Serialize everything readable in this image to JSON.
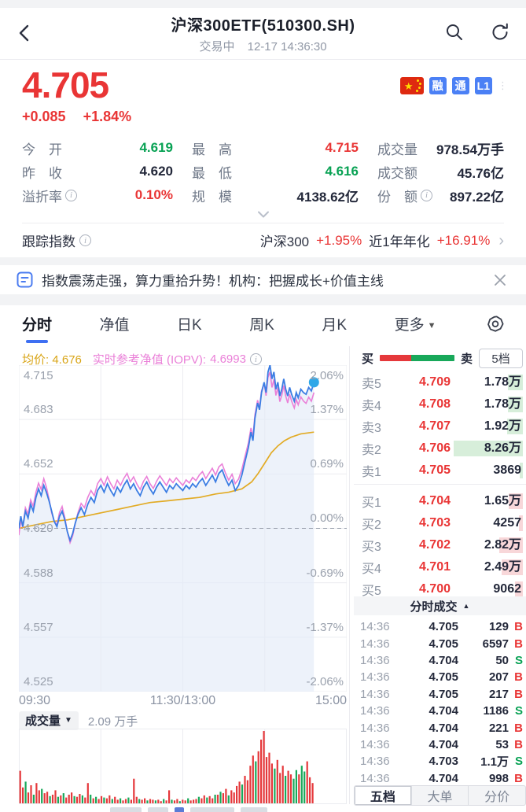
{
  "colors": {
    "up": "#e93535",
    "down": "#08a254",
    "dark": "#23283a",
    "accent": "#3e6ff2",
    "price_line": "#3b7de3",
    "iopv_line": "#ea80d8",
    "avg_line": "#e2ab25",
    "dot": "#2ea7e8",
    "vol_up": "#e5383b",
    "vol_down": "#18a85a"
  },
  "header": {
    "title": "沪深300ETF(510300.SH)",
    "status": "交易中",
    "datetime": "12-17 14:36:30"
  },
  "quote": {
    "last": "4.705",
    "change": "+0.085",
    "change_pct": "+1.84%",
    "badges": [
      {
        "type": "flag",
        "label": "cn-flag"
      },
      {
        "type": "text",
        "label": "融"
      },
      {
        "type": "text",
        "label": "通"
      },
      {
        "type": "text",
        "label": "L1"
      }
    ],
    "stats": [
      [
        {
          "label": "今　开",
          "value": "4.619",
          "color": "down"
        },
        {
          "label": "最　高",
          "value": "4.715",
          "color": "up"
        },
        {
          "label": "成交量",
          "value": "978.54万手",
          "color": "dark"
        }
      ],
      [
        {
          "label": "昨　收",
          "value": "4.620",
          "color": "dark"
        },
        {
          "label": "最　低",
          "value": "4.616",
          "color": "down"
        },
        {
          "label": "成交额",
          "value": "45.76亿",
          "color": "dark"
        }
      ],
      [
        {
          "label": "溢折率",
          "info": true,
          "value": "0.10%",
          "color": "up"
        },
        {
          "label": "规　模",
          "value": "4138.62亿",
          "color": "dark"
        },
        {
          "label": "份　额",
          "info": true,
          "value": "897.22亿",
          "color": "dark"
        }
      ]
    ]
  },
  "tracking": {
    "label": "跟踪指数",
    "index_name": "沪深300",
    "index_chg": "+1.95%",
    "annual_label": "近1年年化",
    "annual_val": "+16.91%"
  },
  "news": {
    "text": "指数震荡走强，算力重拾升势！机构：把握成长+价值主线"
  },
  "tabs": {
    "items": [
      {
        "label": "分时",
        "active": true
      },
      {
        "label": "净值"
      },
      {
        "label": "日K"
      },
      {
        "label": "周K"
      },
      {
        "label": "月K"
      },
      {
        "label": "更多",
        "caret": true
      }
    ]
  },
  "chart": {
    "legend": {
      "avg_label": "均价:",
      "avg_value": "4.676",
      "iopv_label": "实时参考净值 (IOPV):",
      "iopv_value": "4.6993"
    },
    "y_left": [
      "4.715",
      "4.683",
      "4.652",
      "4.620",
      "4.588",
      "4.557",
      "4.525"
    ],
    "y_right": [
      "2.06%",
      "1.37%",
      "0.69%",
      "0.00%",
      "-0.69%",
      "-1.37%",
      "-2.06%"
    ],
    "x_labels": [
      "09:30",
      "11:30/13:00",
      "15:00"
    ],
    "volume_label": "成交量",
    "volume_value": "2.09 万手"
  },
  "orderbook": {
    "buy_label": "买",
    "sell_label": "卖",
    "depth_button": "5档",
    "ratio_red": 0.42,
    "asks": [
      {
        "label": "卖5",
        "price": "4.709",
        "qty": "1.78万",
        "q": 17800
      },
      {
        "label": "卖4",
        "price": "4.708",
        "qty": "1.78万",
        "q": 17800
      },
      {
        "label": "卖3",
        "price": "4.707",
        "qty": "1.92万",
        "q": 19200
      },
      {
        "label": "卖2",
        "price": "4.706",
        "qty": "8.26万",
        "q": 82600
      },
      {
        "label": "卖1",
        "price": "4.705",
        "qty": "3869",
        "q": 3869
      }
    ],
    "bids": [
      {
        "label": "买1",
        "price": "4.704",
        "qty": "1.65万",
        "q": 16500
      },
      {
        "label": "买2",
        "price": "4.703",
        "qty": "4257",
        "q": 4257
      },
      {
        "label": "买3",
        "price": "4.702",
        "qty": "2.82万",
        "q": 28200
      },
      {
        "label": "买4",
        "price": "4.701",
        "qty": "2.49万",
        "q": 24900
      },
      {
        "label": "买5",
        "price": "4.700",
        "qty": "9062",
        "q": 9062
      }
    ]
  },
  "trades": {
    "header": "分时成交",
    "rows": [
      {
        "time": "14:36",
        "price": "4.705",
        "qty": "129",
        "side": "B"
      },
      {
        "time": "14:36",
        "price": "4.705",
        "qty": "6597",
        "side": "B"
      },
      {
        "time": "14:36",
        "price": "4.704",
        "qty": "50",
        "side": "S"
      },
      {
        "time": "14:36",
        "price": "4.705",
        "qty": "207",
        "side": "B"
      },
      {
        "time": "14:36",
        "price": "4.705",
        "qty": "217",
        "side": "B"
      },
      {
        "time": "14:36",
        "price": "4.704",
        "qty": "1186",
        "side": "S"
      },
      {
        "time": "14:36",
        "price": "4.704",
        "qty": "221",
        "side": "B"
      },
      {
        "time": "14:36",
        "price": "4.704",
        "qty": "53",
        "side": "B"
      },
      {
        "time": "14:36",
        "price": "4.703",
        "qty": "1.1万",
        "side": "S"
      },
      {
        "time": "14:36",
        "price": "4.704",
        "qty": "998",
        "side": "B"
      }
    ]
  },
  "bottom_tabs": [
    {
      "label": "五档",
      "active": true
    },
    {
      "label": "大单"
    },
    {
      "label": "分价"
    }
  ],
  "chart_data": {
    "type": "line",
    "title": "沪深300ETF intraday",
    "x_range": [
      "09:30",
      "15:00"
    ],
    "now_fraction": 0.9,
    "y_axis": {
      "base": 4.62,
      "min": 4.525,
      "max": 4.715,
      "pct_min": -2.06,
      "pct_max": 2.06
    },
    "series_names": [
      "price",
      "iopv",
      "avg_price"
    ],
    "price": [
      0,
      4.62,
      0.006,
      4.627,
      0.012,
      4.621,
      0.02,
      4.63,
      0.028,
      4.626,
      0.036,
      4.634,
      0.044,
      4.63,
      0.052,
      4.638,
      0.06,
      4.643,
      0.068,
      4.639,
      0.076,
      4.645,
      0.084,
      4.641,
      0.092,
      4.636,
      0.1,
      4.63,
      0.108,
      4.624,
      0.116,
      4.621,
      0.124,
      4.627,
      0.132,
      4.63,
      0.14,
      4.625,
      0.148,
      4.618,
      0.156,
      4.613,
      0.164,
      4.617,
      0.172,
      4.623,
      0.18,
      4.628,
      0.19,
      4.632,
      0.2,
      4.628,
      0.21,
      4.634,
      0.22,
      4.638,
      0.23,
      4.635,
      0.24,
      4.642,
      0.25,
      4.645,
      0.26,
      4.641,
      0.27,
      4.646,
      0.28,
      4.642,
      0.29,
      4.639,
      0.3,
      4.644,
      0.31,
      4.641,
      0.32,
      4.645,
      0.33,
      4.648,
      0.34,
      4.643,
      0.35,
      4.646,
      0.36,
      4.642,
      0.37,
      4.639,
      0.38,
      4.644,
      0.39,
      4.647,
      0.4,
      4.643,
      0.41,
      4.64,
      0.42,
      4.644,
      0.43,
      4.647,
      0.44,
      4.644,
      0.45,
      4.641,
      0.46,
      4.645,
      0.47,
      4.643,
      0.48,
      4.646,
      0.49,
      4.644,
      0.5,
      4.642,
      0.51,
      4.645,
      0.52,
      4.643,
      0.53,
      4.646,
      0.54,
      4.644,
      0.55,
      4.647,
      0.56,
      4.649,
      0.57,
      4.645,
      0.58,
      4.648,
      0.59,
      4.651,
      0.6,
      4.647,
      0.61,
      4.652,
      0.62,
      4.654,
      0.63,
      4.649,
      0.64,
      4.645,
      0.65,
      4.648,
      0.66,
      4.642,
      0.67,
      4.645,
      0.68,
      4.651,
      0.69,
      4.659,
      0.7,
      4.667,
      0.708,
      4.676,
      0.714,
      4.671,
      0.72,
      4.684,
      0.728,
      4.693,
      0.734,
      4.689,
      0.74,
      4.699,
      0.748,
      4.705,
      0.754,
      4.699,
      0.76,
      4.711,
      0.766,
      4.715,
      0.772,
      4.707,
      0.778,
      4.711,
      0.784,
      4.701,
      0.79,
      4.705,
      0.796,
      4.697,
      0.802,
      4.701,
      0.808,
      4.707,
      0.814,
      4.701,
      0.82,
      4.697,
      0.826,
      4.702,
      0.832,
      4.698,
      0.84,
      4.694,
      0.846,
      4.699,
      0.852,
      4.696,
      0.86,
      4.701,
      0.868,
      4.699,
      0.876,
      4.698,
      0.884,
      4.702,
      0.892,
      4.7,
      0.9,
      4.705
    ],
    "iopv_delta": [
      0,
      -0.004,
      0.02,
      0.002,
      0.05,
      0.003,
      0.08,
      0.004,
      0.1,
      -0.001,
      0.13,
      0.003,
      0.16,
      -0.002,
      0.2,
      0.004,
      0.25,
      0.004,
      0.3,
      0.004,
      0.35,
      0.004,
      0.4,
      0.003,
      0.45,
      0.004,
      0.5,
      0.003,
      0.55,
      0.004,
      0.6,
      0.004,
      0.64,
      0.003,
      0.66,
      0.004,
      0.69,
      0.003,
      0.72,
      0.002,
      0.74,
      0.001,
      0.76,
      -0.003,
      0.772,
      -0.005,
      0.79,
      -0.003,
      0.81,
      -0.004,
      0.83,
      -0.004,
      0.85,
      -0.004,
      0.87,
      -0.005,
      0.89,
      -0.006,
      0.9,
      -0.006
    ],
    "avg": [
      0,
      4.62,
      0.05,
      4.622,
      0.1,
      4.624,
      0.15,
      4.625,
      0.2,
      4.627,
      0.25,
      4.629,
      0.3,
      4.631,
      0.35,
      4.633,
      0.4,
      4.635,
      0.45,
      4.636,
      0.5,
      4.637,
      0.55,
      4.638,
      0.6,
      4.64,
      0.64,
      4.641,
      0.68,
      4.643,
      0.71,
      4.647,
      0.73,
      4.652,
      0.75,
      4.658,
      0.77,
      4.664,
      0.79,
      4.668,
      0.81,
      4.671,
      0.83,
      4.673,
      0.86,
      4.675,
      0.9,
      4.676
    ],
    "volume_bars": [
      "45r",
      "22r",
      "30g",
      "15r",
      "25r",
      "12g",
      "28r",
      "18r",
      "20g",
      "14r",
      "16r",
      "10g",
      "12r",
      "18r",
      "9g",
      "11r",
      "14g",
      "8r",
      "12r",
      "15r",
      "10g",
      "9r",
      "13r",
      "11g",
      "8r",
      "28r",
      "12g",
      "7r",
      "9g",
      "6r",
      "10r",
      "8g",
      "7r",
      "11r",
      "6g",
      "9r",
      "5r",
      "7g",
      "4r",
      "6r",
      "8g",
      "5r",
      "34r",
      "9r",
      "6g",
      "5r",
      "7r",
      "4g",
      "6r",
      "5r",
      "4g",
      "5r",
      "3r",
      "6g",
      "4r",
      "18r",
      "5g",
      "4r",
      "6r",
      "3g",
      "5r",
      "4r",
      "7g",
      "4r",
      "5r",
      "6r",
      "9g",
      "7r",
      "11r",
      "8g",
      "10r",
      "7r",
      "12g",
      "12r",
      "16g",
      "14r",
      "20r",
      "11g",
      "18r",
      "15r",
      "24r",
      "30r",
      "26g",
      "38r",
      "32r",
      "52r",
      "66r",
      "58g",
      "72r",
      "88r",
      "100r",
      "64r",
      "70r",
      "55r",
      "48g",
      "60r",
      "42r",
      "52r",
      "38g",
      "45r",
      "40r",
      "34g",
      "46g",
      "40r",
      "52g",
      "44g",
      "58r",
      "36r",
      "28r"
    ]
  }
}
